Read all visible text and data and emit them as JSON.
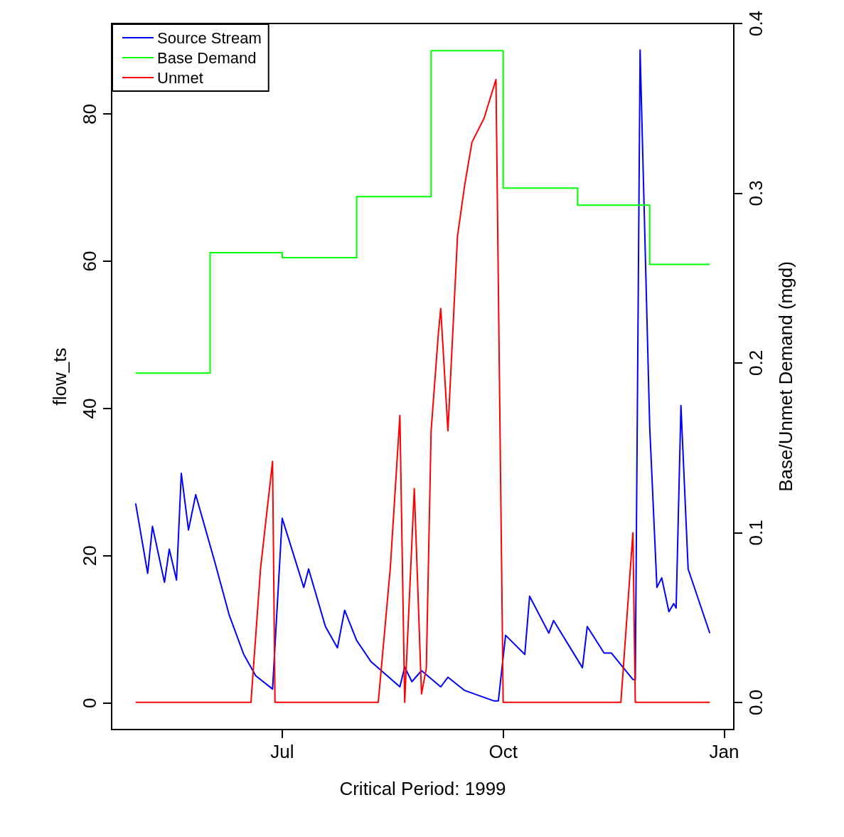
{
  "chart_data": {
    "type": "line",
    "xlabel": "Critical Period: 1999",
    "ylabel": "flow_ts",
    "y2label": "Base/Unmet Demand (mgd)",
    "xlim": [
      "1999-04-21",
      "2000-01-05"
    ],
    "xticks": [
      {
        "value": "1999-07-01",
        "label": "Jul"
      },
      {
        "value": "1999-10-01",
        "label": "Oct"
      },
      {
        "value": "2000-01-01",
        "label": "Jan"
      }
    ],
    "ylim": [
      -3.6,
      92.3
    ],
    "yticks": [
      0,
      20,
      40,
      60,
      80
    ],
    "y2lim": [
      -0.016,
      0.4
    ],
    "y2ticks": [
      {
        "value": 0,
        "label": "0.0"
      },
      0.1,
      0.2,
      0.3,
      0.4
    ],
    "legend": "top left",
    "grid": false,
    "series": [
      {
        "name": "Source Stream",
        "color": "#0000ff",
        "x": [
          "1999-05-01",
          "1999-05-06",
          "1999-05-08",
          "1999-05-13",
          "1999-05-15",
          "1999-05-18",
          "1999-05-20",
          "1999-05-23",
          "1999-05-26",
          "1999-06-03",
          "1999-06-09",
          "1999-06-15",
          "1999-06-20",
          "1999-06-27",
          "1999-07-01",
          "1999-07-10",
          "1999-07-12",
          "1999-07-19",
          "1999-07-24",
          "1999-07-27",
          "1999-08-01",
          "1999-08-07",
          "1999-08-19",
          "1999-08-21",
          "1999-08-24",
          "1999-08-28",
          "1999-09-05",
          "1999-09-08",
          "1999-09-15",
          "1999-09-27",
          "1999-09-29",
          "1999-10-02",
          "1999-10-10",
          "1999-10-12",
          "1999-10-20",
          "1999-10-22",
          "1999-11-03",
          "1999-11-05",
          "1999-11-12",
          "1999-11-15",
          "1999-11-24",
          "1999-11-25",
          "1999-11-27",
          "1999-12-01",
          "1999-12-04",
          "1999-12-06",
          "1999-12-09",
          "1999-12-11",
          "1999-12-12",
          "1999-12-14",
          "1999-12-17",
          "1999-12-26"
        ],
        "values": [
          27.1,
          17.6,
          24.0,
          16.4,
          20.9,
          16.7,
          31.2,
          23.5,
          28.3,
          19.1,
          11.9,
          6.6,
          3.7,
          1.9,
          25.1,
          15.7,
          18.2,
          10.4,
          7.5,
          12.6,
          8.5,
          5.6,
          2.2,
          4.9,
          2.9,
          4.4,
          2.2,
          3.5,
          1.7,
          0.3,
          0.3,
          9.2,
          6.6,
          14.5,
          9.5,
          11.2,
          4.8,
          10.4,
          6.8,
          6.8,
          3.2,
          3.2,
          88.7,
          37.5,
          15.7,
          17.0,
          12.4,
          13.5,
          12.9,
          40.4,
          18.2,
          9.5
        ]
      },
      {
        "name": "Base Demand",
        "color": "#00ff00",
        "type": "step",
        "axis": "y2",
        "x": [
          "1999-05-01",
          "1999-06-01",
          "1999-07-01",
          "1999-08-01",
          "1999-09-01",
          "1999-10-01",
          "1999-11-01",
          "1999-12-01",
          "1999-12-26"
        ],
        "values": [
          0.194,
          0.265,
          0.262,
          0.298,
          0.384,
          0.303,
          0.293,
          0.258,
          0.258
        ]
      },
      {
        "name": "Unmet",
        "color": "#ff0000",
        "axis": "y2",
        "x": [
          "1999-05-01",
          "1999-06-18",
          "1999-06-22",
          "1999-06-27",
          "1999-06-28",
          "1999-08-10",
          "1999-08-15",
          "1999-08-19",
          "1999-08-21",
          "1999-08-25",
          "1999-08-28",
          "1999-08-30",
          "1999-09-01",
          "1999-09-04",
          "1999-09-05",
          "1999-09-08",
          "1999-09-12",
          "1999-09-15",
          "1999-09-18",
          "1999-09-23",
          "1999-09-28",
          "1999-10-01",
          "1999-11-19",
          "1999-11-24",
          "1999-11-25",
          "1999-12-26"
        ],
        "values": [
          0,
          0,
          0.079,
          0.142,
          0,
          0,
          0.079,
          0.169,
          0,
          0.126,
          0.005,
          0.02,
          0.16,
          0.217,
          0.232,
          0.16,
          0.275,
          0.305,
          0.33,
          0.344,
          0.367,
          0,
          0,
          0.1,
          0,
          0
        ]
      }
    ]
  }
}
